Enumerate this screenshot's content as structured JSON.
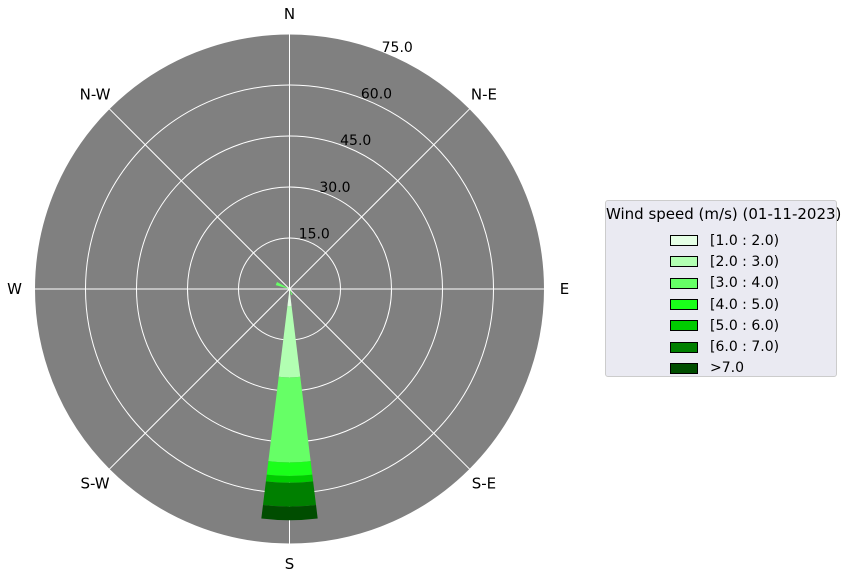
{
  "chart_data": {
    "type": "windrose",
    "directions": [
      "N",
      "N-E",
      "E",
      "S-E",
      "S",
      "S-W",
      "W",
      "N-W"
    ],
    "radial_ticks": [
      "15.0",
      "30.0",
      "45.0",
      "60.0",
      "75.0"
    ],
    "rmax": 75,
    "sector_directions_deg": [
      0,
      22.5,
      45,
      67.5,
      90,
      112.5,
      135,
      157.5,
      180,
      202.5,
      225,
      247.5,
      270,
      292.5,
      315,
      337.5
    ],
    "series": [
      {
        "name": "[1.0 : 2.0)",
        "color": "#e5ffe5",
        "values": [
          0,
          0,
          0,
          0,
          0,
          0,
          0,
          0,
          5,
          0,
          0,
          0,
          0,
          0,
          0,
          0
        ]
      },
      {
        "name": "[2.0 : 3.0)",
        "color": "#b2ffb2",
        "values": [
          0,
          0,
          0,
          0,
          0,
          0,
          0,
          0.3,
          21,
          0,
          0,
          0,
          0,
          0,
          0,
          0
        ]
      },
      {
        "name": "[3.0 : 4.0)",
        "color": "#66ff66",
        "values": [
          0,
          0,
          0,
          0,
          0,
          0,
          0,
          1.5,
          25,
          0,
          0,
          0,
          0,
          4.2,
          0,
          0
        ]
      },
      {
        "name": "[4.0 : 5.0)",
        "color": "#1aff1a",
        "values": [
          0,
          0,
          0,
          0,
          0,
          0,
          0,
          0,
          4,
          0,
          0,
          0,
          0,
          0,
          0,
          0
        ]
      },
      {
        "name": "[5.0 : 6.0)",
        "color": "#00cc00",
        "values": [
          0,
          0,
          0,
          0,
          0,
          0,
          0,
          0,
          2,
          0,
          0,
          0,
          0,
          0,
          0,
          0
        ]
      },
      {
        "name": "[6.0 : 7.0)",
        "color": "#007f00",
        "values": [
          0,
          0,
          0,
          0,
          0,
          0,
          0,
          0,
          7,
          0,
          0,
          0,
          0,
          0,
          0,
          0
        ]
      },
      {
        "name": ">7.0",
        "color": "#004d00",
        "values": [
          0,
          0,
          0,
          0,
          0,
          0,
          0,
          0,
          4,
          0,
          0,
          0,
          0,
          0,
          0,
          0
        ]
      }
    ]
  },
  "legend": {
    "title": "Wind speed (m/s) (01-11-2023)"
  },
  "colors": {
    "background": "#808080",
    "grid": "#ffffff",
    "legend_bg": "#eaeaf2"
  }
}
